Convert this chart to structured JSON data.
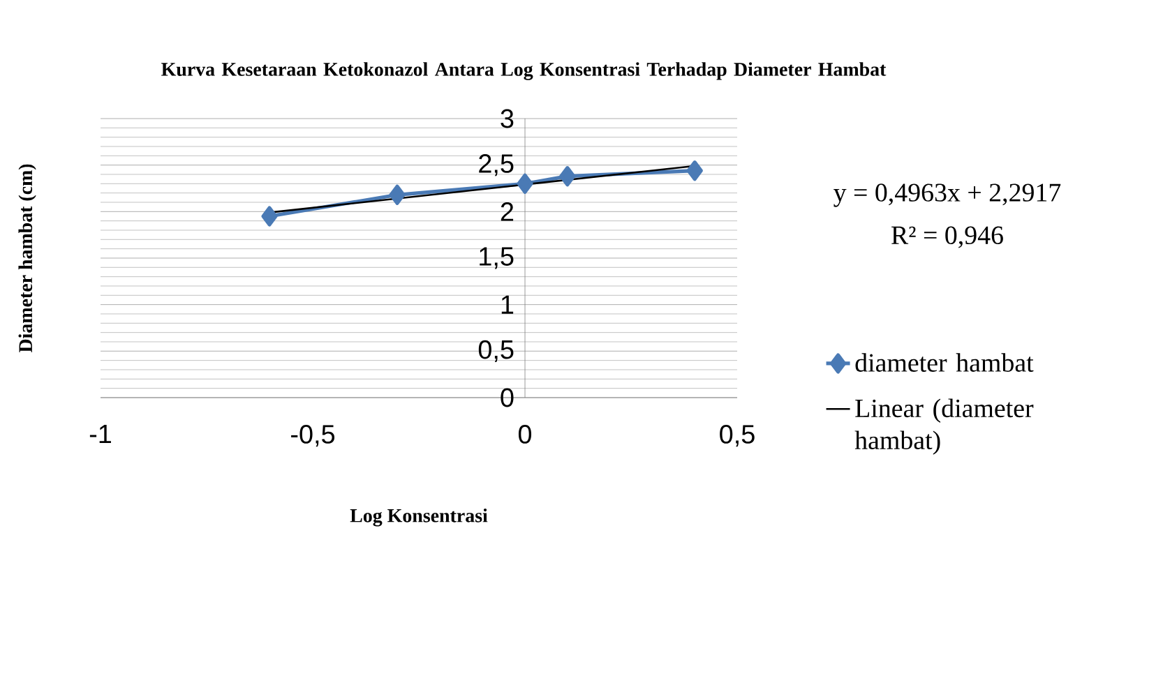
{
  "chart_data": {
    "type": "line",
    "title": "Kurva Kesetaraan Ketokonazol Antara Log Konsentrasi Terhadap Diameter Hambat",
    "xlabel": "Log Konsentrasi",
    "ylabel": "Diameter hambat (cm)",
    "series": [
      {
        "name": "diameter hambat",
        "color": "#4a7ab5",
        "x": [
          -0.602,
          -0.301,
          0,
          0.1,
          0.4
        ],
        "values": [
          1.95,
          2.18,
          2.3,
          2.38,
          2.44
        ],
        "marker": "diamond"
      },
      {
        "name": "Linear (diameter hambat)",
        "color": "#000000",
        "x": [
          -0.602,
          0.398
        ],
        "values": [
          1.99,
          2.49
        ],
        "marker": "none"
      }
    ],
    "xlim": [
      -1,
      0.5
    ],
    "xticks": [
      -1,
      {
        "value": -0.5,
        "label": "-0,5"
      },
      0,
      {
        "value": 0.5,
        "label": "0,5"
      }
    ],
    "ylim": [
      0,
      3
    ],
    "yticks": [
      0,
      {
        "value": 0.5,
        "label": "0,5"
      },
      1,
      {
        "value": 1.5,
        "label": "1,5"
      },
      2,
      {
        "value": 2.5,
        "label": "2,5"
      },
      3
    ],
    "grid": "y",
    "legend": "right",
    "annotations": [
      "y = 0,4963x + 2,2917",
      "R² = 0,946"
    ]
  }
}
